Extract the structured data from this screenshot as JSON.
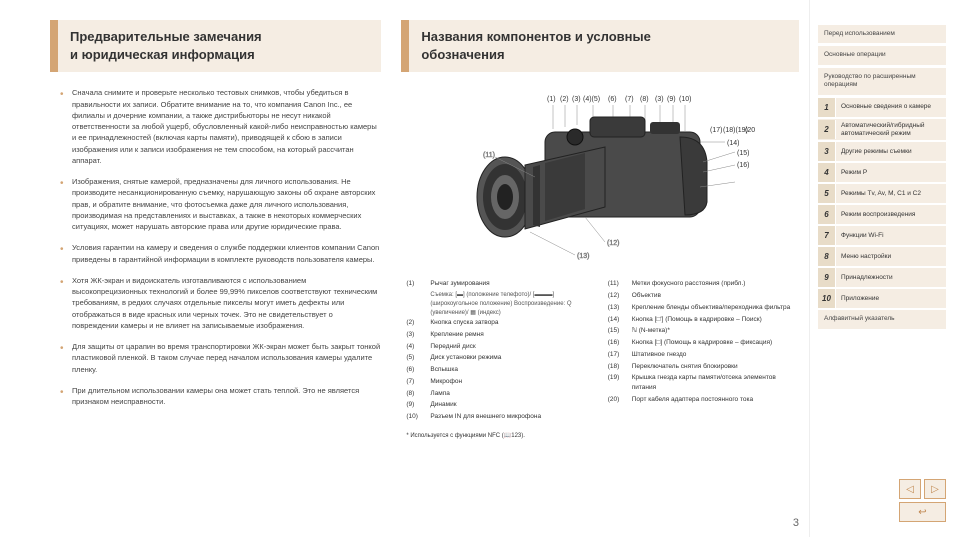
{
  "left": {
    "heading_line1": "Предварительные замечания",
    "heading_line2": "и юридическая информация",
    "bullets": [
      "Сначала снимите и проверьте несколько тестовых снимков, чтобы убедиться в правильности их записи. Обратите внимание на то, что компания Canon Inc., ее филиалы и дочерние компании, а также дистрибьюторы не несут никакой ответственности за любой ущерб, обусловленный какой-либо неисправностью камеры и ее принадлежностей (включая карты памяти), приводящей к сбою в записи изображения или к записи изображения не тем способом, на который рассчитан аппарат.",
      "Изображения, снятые камерой, предназначены для личного использования. Не производите несанкционированную съемку, нарушающую законы об охране авторских прав, и обратите внимание, что фотосъемка даже для личного использования, производимая на представлениях и выставках, а также в некоторых коммерческих ситуациях, может нарушать авторские права или другие юридические права.",
      "Условия гарантии на камеру и сведения о службе поддержки клиентов компании Canon приведены в гарантийной информации в комплекте руководств пользователя камеры.",
      "Хотя ЖК-экран и видоискатель изготавливаются с использованием высокопрецизионных технологий и более 99,99% пикселов соответствуют техническим требованиям, в редких случаях отдельные пикселы могут иметь дефекты или отображаться в виде красных или черных точек. Это не свидетельствует о повреждении камеры и не влияет на записываемые изображения.",
      "Для защиты от царапин во время транспортировки ЖК-экран может быть закрыт тонкой пластиковой пленкой. В таком случае перед началом использования камеры удалите пленку.",
      "При длительном использовании камеры она может стать теплой. Это не является признаком неисправности."
    ]
  },
  "right": {
    "heading_line1": "Названия компонентов и условные",
    "heading_line2": "обозначения",
    "top_labels": [
      "(1)",
      "(2)",
      "(3)",
      "(4)(5)",
      "(6)",
      "(7)",
      "(8)",
      "(3)",
      "(9)",
      "(10)"
    ],
    "side_labels_right": [
      "(17)",
      "(18)(19)",
      "(20)",
      "(14)",
      "(15)",
      "(16)"
    ],
    "side_labels_left": [
      "(11)",
      "(12)",
      "(13)"
    ],
    "legend_left": [
      {
        "n": "(1)",
        "t": "Рычаг зумирования",
        "sub": "Съемка: [▬] (положение телефото)/ [▬▬▬] (широкоугольное положение) Воспроизведение: Q (увеличение)/ ▦ (индекс)"
      },
      {
        "n": "(2)",
        "t": "Кнопка спуска затвора"
      },
      {
        "n": "(3)",
        "t": "Крепление ремня"
      },
      {
        "n": "(4)",
        "t": "Передний диск"
      },
      {
        "n": "(5)",
        "t": "Диск установки режима"
      },
      {
        "n": "(6)",
        "t": "Вспышка"
      },
      {
        "n": "(7)",
        "t": "Микрофон"
      },
      {
        "n": "(8)",
        "t": "Лампа"
      },
      {
        "n": "(9)",
        "t": "Динамик"
      },
      {
        "n": "(10)",
        "t": "Разъем IN для внешнего микрофона"
      }
    ],
    "legend_right": [
      {
        "n": "(11)",
        "t": "Метки фокусного расстояния (прибл.)"
      },
      {
        "n": "(12)",
        "t": "Объектив"
      },
      {
        "n": "(13)",
        "t": "Крепление бленды объектива/переходника фильтра"
      },
      {
        "n": "(14)",
        "t": "Кнопка [□'] (Помощь в кадрировке – Поиск)"
      },
      {
        "n": "(15)",
        "t": "ℕ (N-метка)*"
      },
      {
        "n": "(16)",
        "t": "Кнопка [□] (Помощь в кадрировке – фиксация)"
      },
      {
        "n": "(17)",
        "t": "Штативное гнездо"
      },
      {
        "n": "(18)",
        "t": "Переключатель снятия блокировки"
      },
      {
        "n": "(19)",
        "t": "Крышка гнезда карты памяти/отсека элементов питания"
      },
      {
        "n": "(20)",
        "t": "Порт кабеля адаптера постоянного тока"
      }
    ],
    "footnote": "* Используется с функциями NFC (📖123)."
  },
  "sidebar": {
    "top": [
      "Перед использованием",
      "Основные операции",
      "Руководство по расширенным операциям"
    ],
    "numbered": [
      {
        "n": "1",
        "t": "Основные сведения о камере"
      },
      {
        "n": "2",
        "t": "Автоматический/гибридный автоматический режим"
      },
      {
        "n": "3",
        "t": "Другие режимы съемки"
      },
      {
        "n": "4",
        "t": "Режим P"
      },
      {
        "n": "5",
        "t": "Режимы Tv, Av, M, C1 и C2"
      },
      {
        "n": "6",
        "t": "Режим воспроизведения"
      },
      {
        "n": "7",
        "t": "Функции Wi-Fi"
      },
      {
        "n": "8",
        "t": "Меню настройки"
      },
      {
        "n": "9",
        "t": "Принадлежности"
      },
      {
        "n": "10",
        "t": "Приложение"
      }
    ],
    "bottom": [
      "Алфавитный указатель"
    ]
  },
  "page_number": "3",
  "nav": {
    "prev": "◁",
    "next": "▷",
    "back": "↩"
  }
}
